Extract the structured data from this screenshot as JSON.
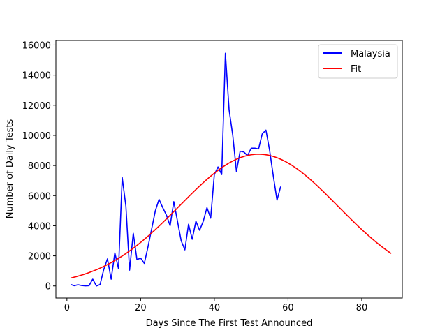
{
  "chart_data": {
    "type": "line",
    "title": "",
    "xlabel": "Days Since The First Test Announced",
    "ylabel": "Number of Daily Tests",
    "xlim": [
      -3,
      91
    ],
    "ylim": [
      -800,
      16300
    ],
    "xticks": [
      0,
      20,
      40,
      60,
      80
    ],
    "yticks": [
      0,
      2000,
      4000,
      6000,
      8000,
      10000,
      12000,
      14000,
      16000
    ],
    "grid": false,
    "legend": "top-right",
    "series": [
      {
        "name": "Malaysia",
        "color": "#0000ff",
        "x": [
          1,
          2,
          3,
          4,
          5,
          6,
          7,
          8,
          9,
          10,
          11,
          12,
          13,
          14,
          15,
          16,
          17,
          18,
          19,
          20,
          21,
          22,
          23,
          24,
          25,
          26,
          27,
          28,
          29,
          30,
          31,
          32,
          33,
          34,
          35,
          36,
          37,
          38,
          39,
          40,
          41,
          42,
          43,
          44,
          45,
          46,
          47,
          48,
          49,
          50,
          51,
          52,
          53,
          54,
          55,
          56,
          57,
          58
        ],
        "y": [
          100,
          20,
          80,
          30,
          10,
          20,
          450,
          0,
          100,
          1100,
          1800,
          450,
          2200,
          1150,
          7200,
          5300,
          1050,
          3500,
          1750,
          1850,
          1500,
          2600,
          3800,
          5000,
          5750,
          5200,
          4700,
          4000,
          5600,
          4300,
          3000,
          2400,
          4100,
          3100,
          4300,
          3700,
          4300,
          5200,
          4500,
          7400,
          7900,
          7400,
          15450,
          11700,
          10000,
          7600,
          8950,
          8900,
          8650,
          9150,
          9150,
          9100,
          10100,
          10350,
          9000,
          7300,
          5700,
          6600
        ]
      },
      {
        "name": "Fit",
        "color": "#ff0000",
        "model": {
          "amplitude": 8750,
          "center": 52,
          "sigma": 21.5
        },
        "x_range": [
          1,
          88
        ]
      }
    ]
  }
}
